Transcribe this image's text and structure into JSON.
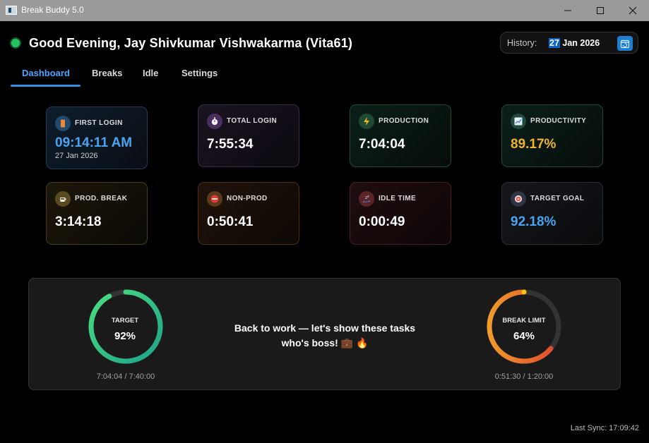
{
  "window": {
    "title": "Break Buddy 5.0"
  },
  "header": {
    "greeting": "Good Evening, Jay Shivkumar Vishwakarma (Vita61)"
  },
  "history": {
    "label": "History:",
    "day": "27",
    "month_year": " Jan 2026"
  },
  "tabs": [
    {
      "label": "Dashboard",
      "active": true
    },
    {
      "label": "Breaks"
    },
    {
      "label": "Idle"
    },
    {
      "label": "Settings"
    }
  ],
  "cards": {
    "first_login": {
      "label": "FIRST LOGIN",
      "value": "09:14:11 AM",
      "sub": "27 Jan 2026",
      "icon": "phone-icon"
    },
    "total_login": {
      "label": "TOTAL LOGIN",
      "value": "7:55:34",
      "icon": "stopwatch-icon"
    },
    "production": {
      "label": "PRODUCTION",
      "value": "7:04:04",
      "icon": "lightning-icon"
    },
    "productivity": {
      "label": "PRODUCTIVITY",
      "value": "89.17%",
      "icon": "chart-icon"
    },
    "prod_break": {
      "label": "PROD. BREAK",
      "value": "3:14:18",
      "icon": "coffee-icon"
    },
    "non_prod": {
      "label": "NON-PROD",
      "value": "0:50:41",
      "icon": "no-entry-icon"
    },
    "idle_time": {
      "label": "IDLE TIME",
      "value": "0:00:49",
      "icon": "sleep-icon"
    },
    "target_goal": {
      "label": "TARGET GOAL",
      "value": "92.18%",
      "icon": "target-icon"
    }
  },
  "target_ring": {
    "title": "TARGET",
    "value": "92%",
    "fraction": 0.92,
    "caption": "7:04:04 / 7:40:00"
  },
  "break_ring": {
    "title": "BREAK LIMIT",
    "value": "64%",
    "fraction": 0.64,
    "caption": "0:51:30 / 1:20:00"
  },
  "motivation": {
    "line1": "Back to work — let's show these tasks",
    "line2": "who's boss! 💼 🔥"
  },
  "footer": {
    "last_sync": "Last Sync: 17:09:42"
  },
  "colors": {
    "accent": "#4fa3ff",
    "productivity": "#f0b429",
    "target_goal": "#4aa3f0",
    "status_dot": "#22c55e"
  }
}
